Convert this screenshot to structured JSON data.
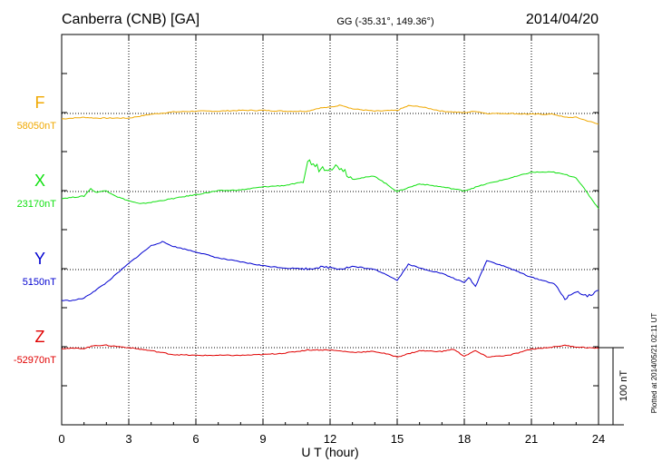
{
  "header": {
    "station": "Canberra (CNB)  [GA]",
    "coords": "GG (-35.31°, 149.36°)",
    "date": "2014/04/20"
  },
  "footer": {
    "plotted": "Plotted at 2014/05/21 02:11  UT"
  },
  "chart_data": {
    "type": "line",
    "title": "Canberra (CNB)  [GA]",
    "xlabel": "U T (hour)",
    "xlim": [
      0,
      24
    ],
    "xticks": [
      "0",
      "3",
      "6",
      "9",
      "12",
      "15",
      "18",
      "21",
      "24"
    ],
    "grid": true,
    "scale_bar": {
      "label": "100 nT",
      "value": 100
    },
    "series": [
      {
        "name": "F",
        "baseline_label": "58050nT",
        "baseline": 58050,
        "color": "#f0a800",
        "x": [
          0,
          1,
          1.5,
          2,
          3,
          4,
          5,
          6,
          7,
          8,
          9,
          10,
          11,
          11.5,
          12,
          12.5,
          13,
          14,
          15,
          15.5,
          16,
          17,
          18,
          18.5,
          19,
          20,
          21,
          22,
          22.5,
          23,
          24
        ],
        "y": [
          -7,
          -5,
          -6,
          -6,
          -6,
          -1,
          2,
          3,
          3,
          4,
          4,
          3,
          3,
          7,
          8,
          11,
          6,
          3,
          4,
          10,
          9,
          3,
          1,
          3,
          0,
          0,
          -1,
          -1,
          -5,
          -5,
          -14
        ]
      },
      {
        "name": "X",
        "baseline_label": "23170nT",
        "baseline": 23170,
        "color": "#10e010",
        "x": [
          0,
          1,
          1.3,
          1.5,
          2,
          2.5,
          3,
          3.5,
          4,
          5,
          6,
          7,
          8,
          9,
          10,
          10.8,
          11,
          11.5,
          12,
          12.5,
          13,
          14,
          14.5,
          15,
          16,
          17,
          18,
          19,
          20,
          21,
          22,
          22.5,
          23,
          24
        ],
        "y": [
          -9,
          -6,
          4,
          -1,
          1,
          -7,
          -12,
          -16,
          -14,
          -9,
          -4,
          1,
          2,
          6,
          8,
          12,
          40,
          30,
          32,
          32,
          16,
          20,
          10,
          0,
          10,
          6,
          1,
          10,
          17,
          25,
          25,
          22,
          18,
          -22
        ]
      },
      {
        "name": "Y",
        "baseline_label": "5150nT",
        "baseline": 5150,
        "color": "#0000d0",
        "x": [
          0,
          0.5,
          1,
          1.5,
          2,
          3,
          4,
          4.5,
          5,
          6,
          7,
          8,
          9,
          10,
          11,
          11.5,
          12,
          12.5,
          13,
          14,
          14.5,
          15,
          15.5,
          16,
          17,
          18,
          18.2,
          18.5,
          19,
          20,
          21,
          22,
          22.5,
          23,
          23.5,
          24
        ],
        "y": [
          -40,
          -40,
          -37,
          -27,
          -17,
          8,
          31,
          36,
          30,
          23,
          15,
          10,
          5,
          2,
          1,
          3,
          3,
          1,
          4,
          0,
          -6,
          -14,
          7,
          2,
          -5,
          -17,
          -10,
          -22,
          12,
          2,
          -10,
          -18,
          -38,
          -28,
          -35,
          -27
        ]
      },
      {
        "name": "Z",
        "baseline_label": "-52970nT",
        "baseline": -52970,
        "color": "#e00000",
        "x": [
          0,
          1,
          1.5,
          2,
          3,
          4,
          5,
          6,
          7,
          8,
          9,
          10,
          11,
          12,
          13,
          14,
          14.5,
          15,
          15.5,
          16,
          17,
          17.5,
          18,
          18.5,
          19,
          20,
          21,
          22,
          22.5,
          23,
          24
        ],
        "y": [
          -1,
          -1,
          3,
          3,
          0,
          -4,
          -9,
          -10,
          -10,
          -10,
          -9,
          -7,
          -3,
          -3,
          -6,
          -5,
          -8,
          -12,
          -8,
          -4,
          -5,
          -2,
          -11,
          -4,
          -12,
          -10,
          -2,
          1,
          3,
          1,
          -1
        ]
      }
    ]
  }
}
